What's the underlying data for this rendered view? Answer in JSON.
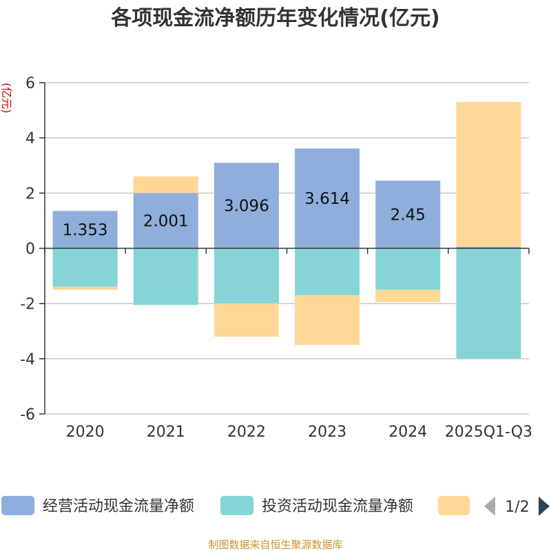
{
  "chart_data": {
    "type": "bar",
    "stacked": true,
    "title": "各项现金流净额历年变化情况(亿元)",
    "ylabel": "(亿元)",
    "ylim": [
      -6,
      6
    ],
    "yticks": [
      6,
      4,
      2,
      0,
      -2,
      -4,
      -6
    ],
    "categories": [
      "2020",
      "2021",
      "2022",
      "2023",
      "2024",
      "2025Q1-Q3"
    ],
    "series": [
      {
        "name": "经营活动现金流量净额",
        "color": "#8eaedb",
        "values": [
          1.353,
          2.001,
          3.096,
          3.614,
          2.45,
          0.05
        ]
      },
      {
        "name": "投资活动现金流量净额",
        "color": "#86d4d6",
        "values": [
          -1.4,
          -2.05,
          -2.0,
          -1.7,
          -1.5,
          -4.0
        ]
      },
      {
        "name": "",
        "color": "#fed797",
        "values": [
          -0.1,
          0.6,
          -1.2,
          -1.8,
          -0.45,
          5.25
        ]
      }
    ],
    "data_labels": [
      "1.353",
      "2.001",
      "3.096",
      "3.614",
      "2.45",
      ""
    ],
    "legend_page": "1/2",
    "source": "制图数据来自恒生聚源数据库"
  },
  "icons": {
    "prev": "triangle-left-icon",
    "next": "triangle-right-icon"
  }
}
